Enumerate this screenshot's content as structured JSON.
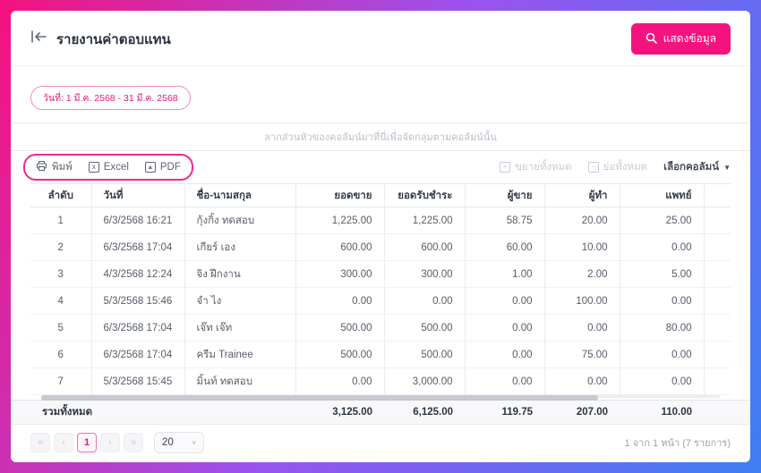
{
  "colors": {
    "accent": "#f5127e",
    "annotation": "#ee2a8c"
  },
  "header": {
    "title": "รายงานค่าตอบแทน",
    "show_data_button": "แสดงข้อมูล"
  },
  "filters": {
    "date_range": "วันที่: 1 มี.ค. 2568 - 31 มี.ค. 2568"
  },
  "grid": {
    "group_hint": "ลากส่วนหัวของคอลัมน์มาที่นี่เพื่อจัดกลุ่มตามคอลัมน์นั้น",
    "toolbar": {
      "print": "พิมพ์",
      "excel": "Excel",
      "pdf": "PDF",
      "expand_all": "ขยายทั้งหมด",
      "collapse_all": "ย่อทั้งหมด",
      "choose_columns": "เลือกคอลัมน์"
    },
    "columns": [
      "ลำดับ",
      "วันที่",
      "ชื่อ-นามสกุล",
      "ยอดขาย",
      "ยอดรับชำระ",
      "ผู้ขาย",
      "ผู้ทำ",
      "แพทย์"
    ],
    "rows": [
      [
        "1",
        "6/3/2568 16:21",
        "กุ้งกิ้ง ทดสอบ",
        "1,225.00",
        "1,225.00",
        "58.75",
        "20.00",
        "25.00"
      ],
      [
        "2",
        "6/3/2568 17:04",
        "เกียร์ เอง",
        "600.00",
        "600.00",
        "60.00",
        "10.00",
        "0.00"
      ],
      [
        "3",
        "4/3/2568 12:24",
        "จิง ฝึกงาน",
        "300.00",
        "300.00",
        "1.00",
        "2.00",
        "5.00"
      ],
      [
        "4",
        "5/3/2568 15:46",
        "จำ ไง",
        "0.00",
        "0.00",
        "0.00",
        "100.00",
        "0.00"
      ],
      [
        "5",
        "6/3/2568 17:04",
        "เจ๊ท เจ๊ท",
        "500.00",
        "500.00",
        "0.00",
        "0.00",
        "80.00"
      ],
      [
        "6",
        "6/3/2568 17:04",
        "ครีม Trainee",
        "500.00",
        "500.00",
        "0.00",
        "75.00",
        "0.00"
      ],
      [
        "7",
        "5/3/2568 15:45",
        "มิ้นท์ ทดสอบ",
        "0.00",
        "3,000.00",
        "0.00",
        "0.00",
        "0.00"
      ]
    ],
    "total_label": "รวมทั้งหมด",
    "totals": [
      "3,125.00",
      "6,125.00",
      "119.75",
      "207.00",
      "110.00"
    ]
  },
  "pagination": {
    "first": "«",
    "prev": "‹",
    "page": "1",
    "next": "›",
    "last": "»",
    "page_size": "20",
    "summary": "1 จาก 1 หน้า (7 รายการ)"
  }
}
